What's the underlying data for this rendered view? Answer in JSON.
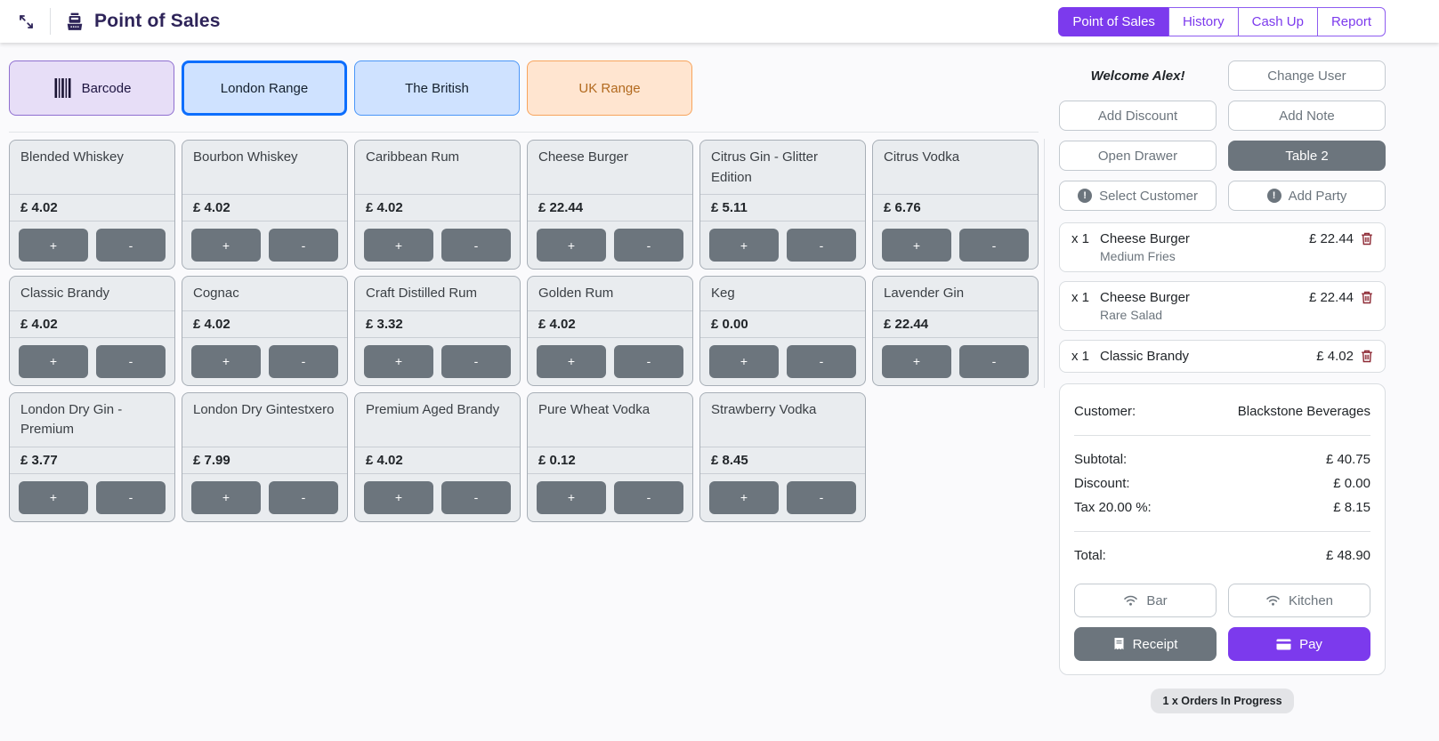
{
  "header": {
    "title": "Point of Sales",
    "tabs": [
      {
        "label": "Point of Sales",
        "active": true
      },
      {
        "label": "History",
        "active": false
      },
      {
        "label": "Cash Up",
        "active": false
      },
      {
        "label": "Report",
        "active": false
      }
    ]
  },
  "categories": [
    {
      "label": "Barcode",
      "variant": "purple",
      "icon": "barcode-icon",
      "selected": false
    },
    {
      "label": "London Range",
      "variant": "blue-selected",
      "selected": true
    },
    {
      "label": "The British",
      "variant": "blue",
      "selected": false
    },
    {
      "label": "UK Range",
      "variant": "orange",
      "selected": false
    }
  ],
  "products": [
    {
      "name": "Blended Whiskey",
      "price": "£ 4.02"
    },
    {
      "name": "Bourbon Whiskey",
      "price": "£ 4.02"
    },
    {
      "name": "Caribbean Rum",
      "price": "£ 4.02"
    },
    {
      "name": "Cheese Burger",
      "price": "£ 22.44"
    },
    {
      "name": "Citrus Gin - Glitter Edition",
      "price": "£ 5.11"
    },
    {
      "name": "Citrus Vodka",
      "price": "£ 6.76"
    },
    {
      "name": "Classic Brandy",
      "price": "£ 4.02"
    },
    {
      "name": "Cognac",
      "price": "£ 4.02"
    },
    {
      "name": "Craft Distilled Rum",
      "price": "£ 3.32"
    },
    {
      "name": "Golden Rum",
      "price": "£ 4.02"
    },
    {
      "name": "Keg",
      "price": "£ 0.00"
    },
    {
      "name": "Lavender Gin",
      "price": "£ 22.44"
    },
    {
      "name": "London Dry Gin - Premium",
      "price": "£ 3.77"
    },
    {
      "name": "London Dry Gintestxero",
      "price": "£ 7.99"
    },
    {
      "name": "Premium Aged Brandy",
      "price": "£ 4.02"
    },
    {
      "name": "Pure Wheat Vodka",
      "price": "£ 0.12"
    },
    {
      "name": "Strawberry Vodka",
      "price": "£ 8.45"
    }
  ],
  "ui": {
    "plus_label": "+",
    "minus_label": "-"
  },
  "sidebar": {
    "welcome": "Welcome Alex!",
    "buttons": {
      "change_user": "Change User",
      "add_discount": "Add Discount",
      "add_note": "Add Note",
      "open_drawer": "Open Drawer",
      "table": "Table 2",
      "select_customer": "Select Customer",
      "add_party": "Add Party"
    },
    "order_items": [
      {
        "qty": "x 1",
        "name": "Cheese Burger",
        "note": "Medium Fries",
        "price": "£ 22.44"
      },
      {
        "qty": "x 1",
        "name": "Cheese Burger",
        "note": "Rare Salad",
        "price": "£ 22.44"
      },
      {
        "qty": "x 1",
        "name": "Classic Brandy",
        "price": "£ 4.02"
      }
    ],
    "summary": {
      "customer_label": "Customer:",
      "customer_value": "Blackstone Beverages",
      "subtotal_label": "Subtotal:",
      "subtotal_value": "£ 40.75",
      "discount_label": "Discount:",
      "discount_value": "£ 0.00",
      "tax_label": "Tax 20.00 %:",
      "tax_value": "£ 8.15",
      "total_label": "Total:",
      "total_value": "£ 48.90"
    },
    "actions": {
      "bar": "Bar",
      "kitchen": "Kitchen",
      "receipt": "Receipt",
      "pay": "Pay"
    },
    "orders_badge": "1 x Orders In Progress"
  },
  "colors": {
    "accent_purple": "#7C3AED",
    "title_indigo": "#2E2459",
    "slate_button": "#6C757D",
    "card_gray": "#E9ECEF",
    "selected_blue_border": "#0D6EFD",
    "category_purple_bg": "#E7DEF7",
    "category_blue_bg": "#CFE2FF",
    "category_orange_bg": "#FFE5D0",
    "danger_trash": "#8E2A35"
  }
}
